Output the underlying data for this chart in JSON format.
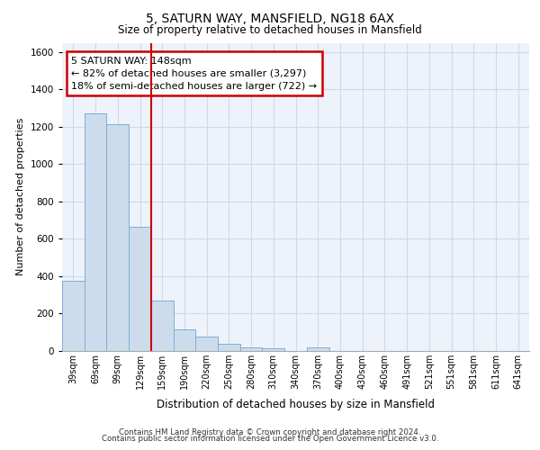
{
  "title1": "5, SATURN WAY, MANSFIELD, NG18 6AX",
  "title2": "Size of property relative to detached houses in Mansfield",
  "xlabel": "Distribution of detached houses by size in Mansfield",
  "ylabel": "Number of detached properties",
  "bar_values": [
    375,
    1270,
    1215,
    665,
    270,
    115,
    75,
    40,
    20,
    15,
    0,
    20,
    0,
    0,
    0,
    0,
    0,
    0,
    0,
    0,
    0
  ],
  "bar_labels": [
    "39sqm",
    "69sqm",
    "99sqm",
    "129sqm",
    "159sqm",
    "190sqm",
    "220sqm",
    "250sqm",
    "280sqm",
    "310sqm",
    "340sqm",
    "370sqm",
    "400sqm",
    "430sqm",
    "460sqm",
    "491sqm",
    "521sqm",
    "551sqm",
    "581sqm",
    "611sqm",
    "641sqm"
  ],
  "bar_color": "#ccdced",
  "bar_edge_color": "#7aaed4",
  "vline_x": 3.5,
  "vline_color": "#cc0000",
  "annotation_text": "5 SATURN WAY: 148sqm\n← 82% of detached houses are smaller (3,297)\n18% of semi-detached houses are larger (722) →",
  "annotation_box_color": "#ffffff",
  "annotation_box_edge": "#cc0000",
  "ylim": [
    0,
    1650
  ],
  "yticks": [
    0,
    200,
    400,
    600,
    800,
    1000,
    1200,
    1400,
    1600
  ],
  "footer1": "Contains HM Land Registry data © Crown copyright and database right 2024.",
  "footer2": "Contains public sector information licensed under the Open Government Licence v3.0.",
  "grid_color": "#d0d8e8",
  "bg_color": "#eef2fa"
}
